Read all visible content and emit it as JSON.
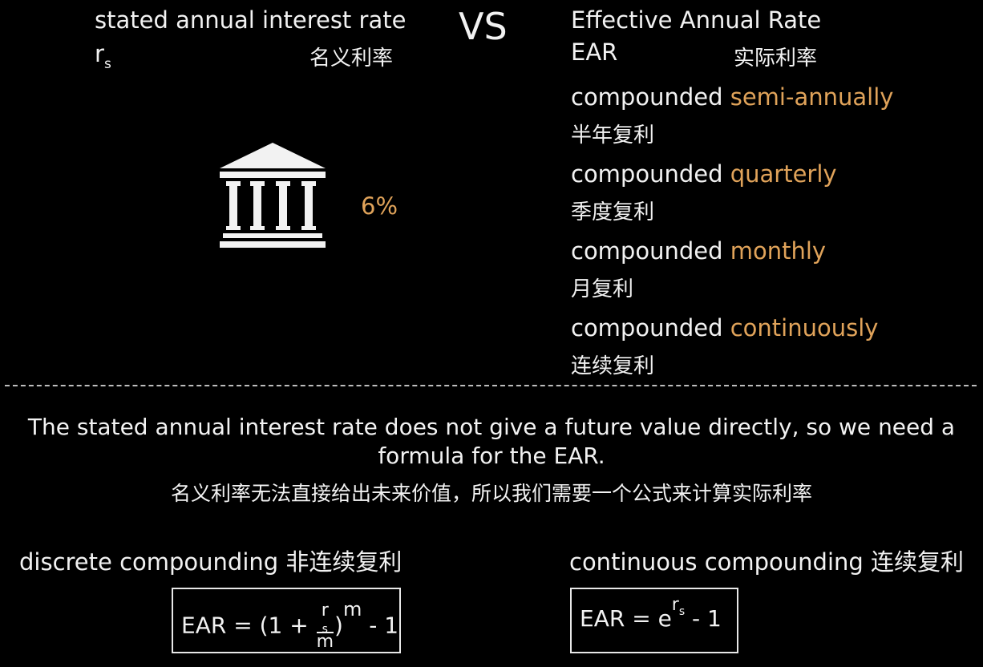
{
  "left": {
    "title": "stated annual interest rate",
    "symbol_main": "r",
    "symbol_sub": "s",
    "title_zh": "名义利率",
    "icon": "bank-icon",
    "rate": "6%"
  },
  "vs": "VS",
  "right": {
    "title": "Effective Annual Rate",
    "abbr": "EAR",
    "title_zh": "实际利率",
    "items": [
      {
        "prefix": "compounded",
        "term": "semi-annually",
        "zh": "半年复利"
      },
      {
        "prefix": "compounded",
        "term": "quarterly",
        "zh": "季度复利"
      },
      {
        "prefix": "compounded",
        "term": "monthly",
        "zh": "月复利"
      },
      {
        "prefix": "compounded",
        "term": "continuously",
        "zh": "连续复利"
      }
    ]
  },
  "explanation": {
    "line1": "The stated annual interest rate does not give a future value directly, so we need a",
    "line2": "formula for the EAR.",
    "zh": "名义利率无法直接给出未来价值，所以我们需要一个公式来计算实际利率"
  },
  "discrete": {
    "label": "discrete compounding 非连续复利",
    "formula_lhs": "EAR = (1 + ",
    "frac_num_main": "r",
    "frac_num_sub": "s",
    "frac_den": "m",
    "paren_close": ")",
    "exponent": "m",
    "formula_tail": " - 1"
  },
  "continuous": {
    "label": "continuous compounding 连续复利",
    "formula_lhs": "EAR = e",
    "exp_main": "r",
    "exp_sub": "s",
    "formula_tail": " - 1"
  },
  "colors": {
    "background": "#000000",
    "text": "#f2f2f2",
    "accent": "#e0a35a"
  }
}
